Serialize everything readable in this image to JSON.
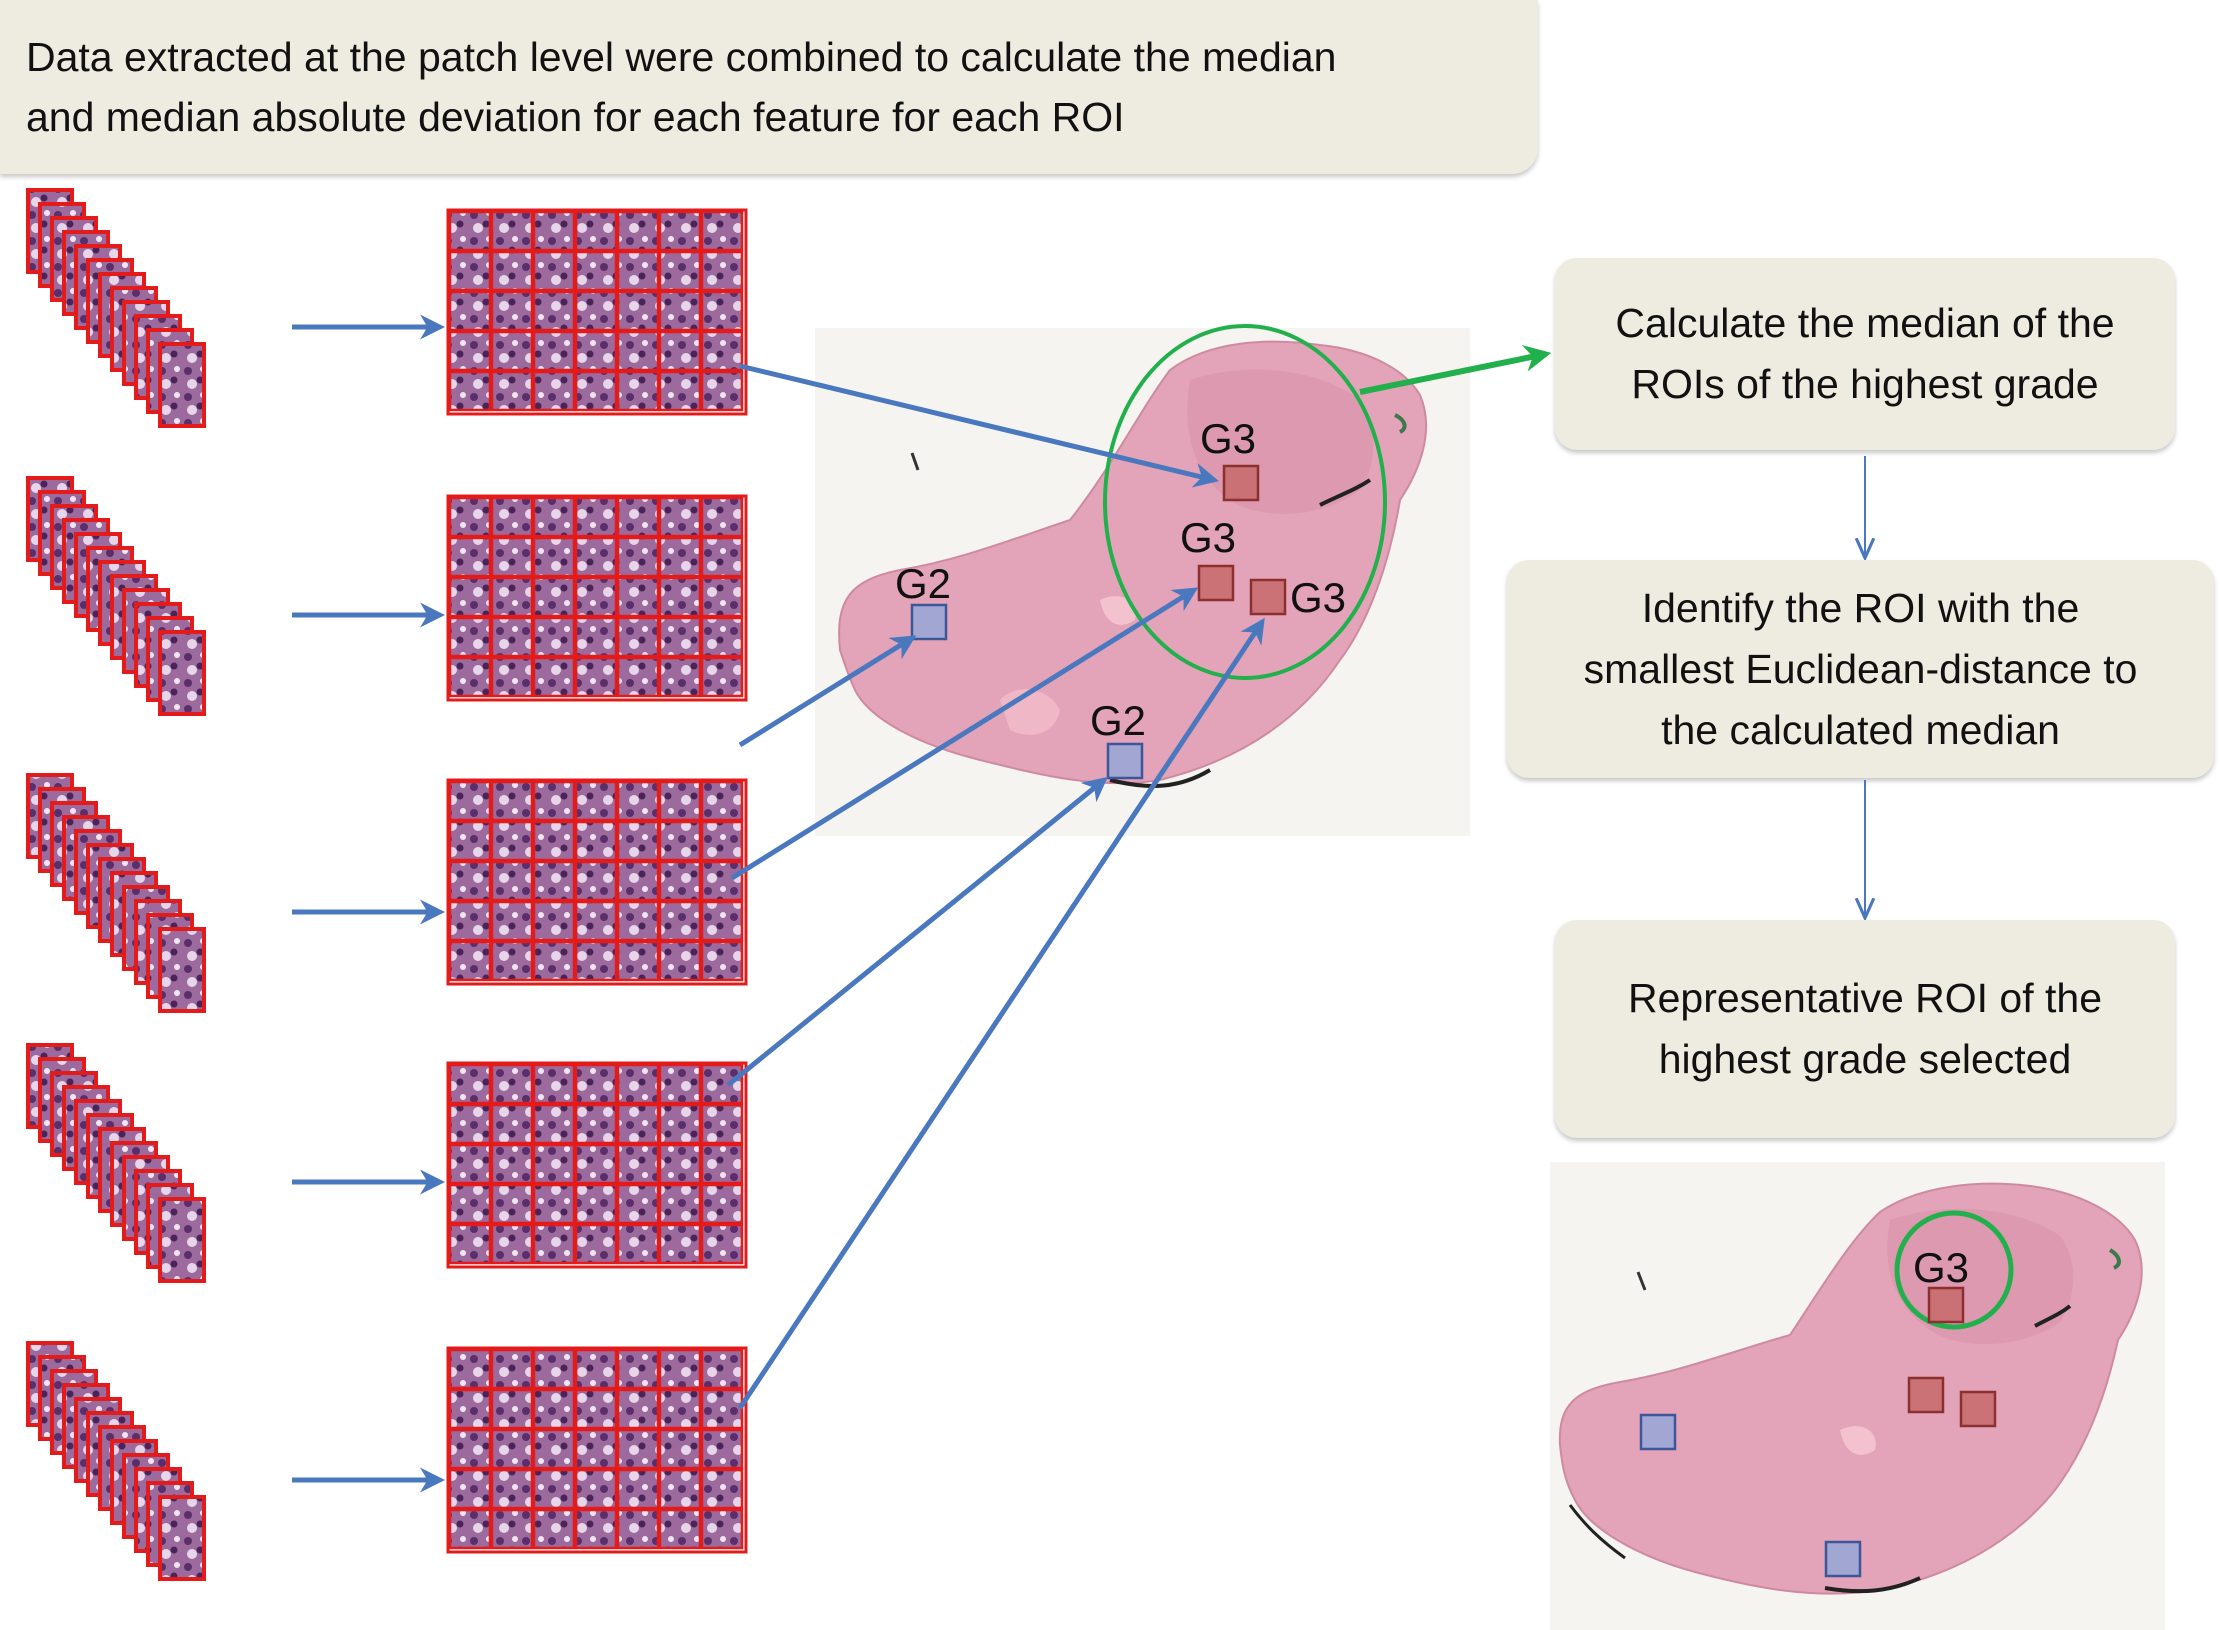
{
  "header": {
    "line1": "Data extracted at the patch level were combined to calculate the median",
    "line2": "and median absolute deviation for each feature for each ROI"
  },
  "steps": [
    {
      "line1": "Calculate the median of the",
      "line2": "ROIs of the highest grade"
    },
    {
      "line1": "Identify the ROI with the",
      "line2": "smallest Euclidean-distance to",
      "line3": "the calculated median"
    },
    {
      "line1": "Representative  ROI of the",
      "line2": "highest grade selected"
    }
  ],
  "roi_labels": {
    "g3_top": "G3",
    "g3_mid": "G3",
    "g3_right": "G3",
    "g2_left": "G2",
    "g2_bottom": "G2",
    "g3_selected": "G3"
  },
  "colors": {
    "flow_arrow": "#4a78be",
    "selection_arrow": "#22b04c",
    "selection_circle": "#22b04c",
    "patch_border": "#e41b1b",
    "roi_high_grade": "#b24b46",
    "roi_low_grade": "#4f6aa8",
    "box_fill": "#eeebe0"
  }
}
